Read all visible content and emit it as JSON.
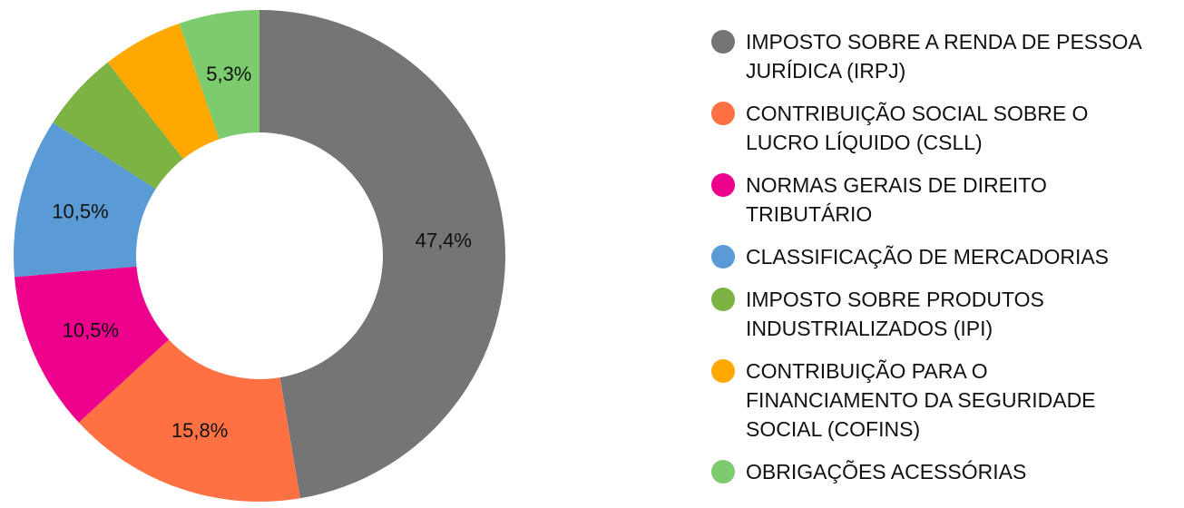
{
  "chart_data": {
    "type": "pie",
    "donut": true,
    "categories": [
      "IMPOSTO SOBRE A RENDA DE PESSOA JURÍDICA (IRPJ)",
      "CONTRIBUIÇÃO SOCIAL SOBRE O LUCRO LÍQUIDO (CSLL)",
      "NORMAS GERAIS DE DIREITO TRIBUTÁRIO",
      "CLASSIFICAÇÃO DE MERCADORIAS",
      "IMPOSTO SOBRE PRODUTOS INDUSTRIALIZADOS (IPI)",
      "CONTRIBUIÇÃO PARA O FINANCIAMENTO DA SEGURIDADE SOCIAL (COFINS)",
      "OBRIGAÇÕES ACESSÓRIAS"
    ],
    "legend_lines": [
      [
        "IMPOSTO SOBRE A RENDA DE PESSOA",
        "JURÍDICA (IRPJ)"
      ],
      [
        "CONTRIBUIÇÃO SOCIAL SOBRE O",
        "LUCRO LÍQUIDO (CSLL)"
      ],
      [
        "NORMAS GERAIS DE DIREITO",
        "TRIBUTÁRIO"
      ],
      [
        "CLASSIFICAÇÃO DE MERCADORIAS"
      ],
      [
        "IMPOSTO SOBRE PRODUTOS",
        "INDUSTRIALIZADOS (IPI)"
      ],
      [
        "CONTRIBUIÇÃO PARA O",
        "FINANCIAMENTO DA SEGURIDADE",
        "SOCIAL (COFINS)"
      ],
      [
        "OBRIGAÇÕES ACESSÓRIAS"
      ]
    ],
    "values": [
      47.4,
      15.8,
      10.5,
      10.5,
      5.3,
      5.3,
      5.3
    ],
    "data_labels": [
      "47,4%",
      "15,8%",
      "10,5%",
      "10,5%",
      "",
      "",
      "5,3%"
    ],
    "colors": [
      "#757575",
      "#ff7043",
      "#ec008c",
      "#5b9bd5",
      "#7cb342",
      "#ffa800",
      "#7ccb6f"
    ],
    "legend_placement": "right"
  }
}
